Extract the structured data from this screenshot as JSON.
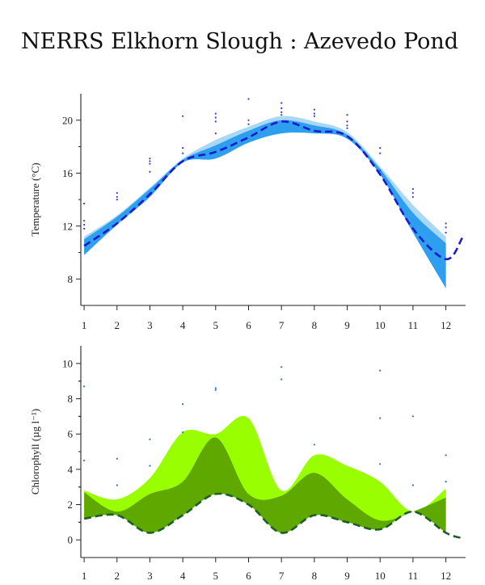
{
  "title": "NERRS Elkhorn Slough : Azevedo Pond",
  "chart_data": [
    {
      "type": "area",
      "name": "temperature",
      "ylabel": "Temperature (°C)",
      "xlabel": "",
      "xlim": [
        0.9,
        12.6
      ],
      "ylim": [
        6,
        22
      ],
      "x_ticks": [
        1,
        2,
        3,
        4,
        5,
        6,
        7,
        8,
        9,
        10,
        11,
        12
      ],
      "y_ticks": [
        8,
        12,
        16,
        20
      ],
      "grid": false,
      "colors": {
        "outer_band": "#a8d8f6",
        "inner_band": "#2d9fee",
        "mean_line": "#1a1ad0",
        "points": "#2a3fd8"
      },
      "outer_band": {
        "x": [
          1,
          2,
          3,
          4,
          5,
          6,
          7,
          8,
          9,
          10,
          11,
          12
        ],
        "upper": [
          11.2,
          12.8,
          14.9,
          17.1,
          18.5,
          19.5,
          20.3,
          19.9,
          19.1,
          16.5,
          13.6,
          11.2
        ],
        "lower": [
          9.9,
          12.2,
          14.3,
          16.9,
          17.2,
          18.4,
          19.1,
          19.1,
          18.6,
          16.0,
          11.6,
          7.3
        ]
      },
      "inner_band": {
        "x": [
          1,
          2,
          3,
          4,
          5,
          6,
          7,
          8,
          9,
          10,
          11,
          12
        ],
        "upper": [
          11.0,
          12.7,
          14.8,
          17.0,
          18.1,
          19.2,
          20.0,
          19.6,
          18.9,
          16.3,
          13.0,
          10.7
        ],
        "lower": [
          9.8,
          12.1,
          14.2,
          16.8,
          17.1,
          18.3,
          19.0,
          19.0,
          18.6,
          15.9,
          11.5,
          7.3
        ]
      },
      "mean_line": {
        "x": [
          1,
          2,
          3,
          4,
          5,
          6,
          7,
          8,
          9,
          10,
          11,
          12,
          12.5
        ],
        "y": [
          10.5,
          12.2,
          14.4,
          16.9,
          17.6,
          18.7,
          19.9,
          19.2,
          18.8,
          15.9,
          11.8,
          9.5,
          11.1
        ]
      },
      "points": [
        [
          1,
          13.7
        ],
        [
          1,
          12.4
        ],
        [
          1,
          12.1
        ],
        [
          1,
          11.8
        ],
        [
          2,
          14.5
        ],
        [
          2,
          14.2
        ],
        [
          2,
          14.0
        ],
        [
          3,
          17.1
        ],
        [
          3,
          16.9
        ],
        [
          3,
          16.7
        ],
        [
          3,
          16.1
        ],
        [
          4,
          20.3
        ],
        [
          4,
          17.9
        ],
        [
          4,
          17.5
        ],
        [
          5,
          20.5
        ],
        [
          5,
          20.2
        ],
        [
          5,
          19.9
        ],
        [
          5,
          19.0
        ],
        [
          6,
          21.6
        ],
        [
          6,
          20.0
        ],
        [
          6,
          19.7
        ],
        [
          7,
          21.3
        ],
        [
          7,
          20.9
        ],
        [
          7,
          20.6
        ],
        [
          7,
          20.4
        ],
        [
          8,
          20.8
        ],
        [
          8,
          20.5
        ],
        [
          8,
          20.3
        ],
        [
          9,
          20.4
        ],
        [
          9,
          19.9
        ],
        [
          9,
          19.6
        ],
        [
          9,
          19.4
        ],
        [
          10,
          17.9
        ],
        [
          10,
          17.5
        ],
        [
          10,
          16.2
        ],
        [
          11,
          14.8
        ],
        [
          11,
          14.5
        ],
        [
          11,
          14.2
        ],
        [
          12,
          12.2
        ],
        [
          12,
          11.9
        ],
        [
          12,
          11.5
        ]
      ]
    },
    {
      "type": "area",
      "name": "chlorophyll",
      "ylabel": "Chlorophyll (µg l⁻¹)",
      "xlabel": "",
      "xlim": [
        0.9,
        12.6
      ],
      "ylim": [
        -1,
        11
      ],
      "x_ticks": [
        1,
        2,
        3,
        4,
        5,
        6,
        7,
        8,
        9,
        10,
        11,
        12
      ],
      "y_ticks": [
        0,
        2,
        4,
        6,
        8,
        10
      ],
      "grid": false,
      "colors": {
        "outer_band": "#99ff00",
        "inner_band": "#5fa800",
        "mean_line": "#1c5e28",
        "points": "#2878b8"
      },
      "outer_band": {
        "x": [
          1,
          2,
          3,
          4,
          5,
          6,
          7,
          8,
          9,
          10,
          11,
          12
        ],
        "upper": [
          2.8,
          2.3,
          3.5,
          6.1,
          6.0,
          6.9,
          2.8,
          4.8,
          4.2,
          3.3,
          1.6,
          2.9
        ],
        "lower": [
          1.2,
          1.4,
          0.4,
          1.4,
          2.6,
          2.0,
          0.4,
          1.4,
          1.0,
          0.6,
          1.6,
          0.4
        ]
      },
      "inner_band": {
        "x": [
          1,
          2,
          3,
          4,
          5,
          6,
          7,
          8,
          9,
          10,
          11,
          12
        ],
        "upper": [
          2.7,
          1.6,
          2.6,
          3.3,
          5.8,
          2.6,
          2.5,
          3.8,
          2.3,
          1.1,
          1.6,
          2.4
        ],
        "lower": [
          1.2,
          1.4,
          0.4,
          1.4,
          2.6,
          2.0,
          0.4,
          1.4,
          1.0,
          0.6,
          1.6,
          0.4
        ]
      },
      "mean_line": {
        "x": [
          1,
          2,
          3,
          4,
          5,
          6,
          7,
          8,
          9,
          10,
          11,
          12,
          12.5
        ],
        "y": [
          1.2,
          1.4,
          0.4,
          1.4,
          2.6,
          2.0,
          0.4,
          1.4,
          1.0,
          0.6,
          1.6,
          0.4,
          0.1
        ]
      },
      "points": [
        [
          1,
          8.7
        ],
        [
          1,
          4.5
        ],
        [
          2,
          4.6
        ],
        [
          2,
          3.1
        ],
        [
          3,
          5.7
        ],
        [
          3,
          4.2
        ],
        [
          4,
          7.7
        ],
        [
          4,
          6.1
        ],
        [
          5,
          8.6
        ],
        [
          5,
          8.5
        ],
        [
          7,
          9.8
        ],
        [
          7,
          9.1
        ],
        [
          8,
          5.4
        ],
        [
          10,
          9.6
        ],
        [
          10,
          6.9
        ],
        [
          10,
          4.3
        ],
        [
          11,
          7.0
        ],
        [
          11,
          3.1
        ],
        [
          12,
          4.8
        ],
        [
          12,
          3.3
        ]
      ]
    }
  ]
}
